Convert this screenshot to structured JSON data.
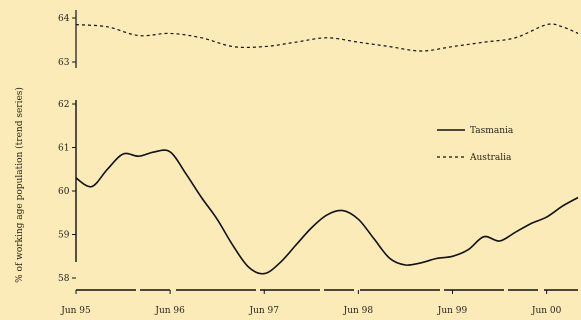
{
  "chart_data": {
    "type": "line",
    "ylabel": "% of working age population (trend series)",
    "yticks_top": [
      "64",
      "63"
    ],
    "yticks_bottom": [
      "62",
      "61",
      "60",
      "59",
      "58"
    ],
    "ylim_top": [
      63,
      64
    ],
    "ylim_bottom": [
      58,
      62
    ],
    "x_tick_labels": [
      "Jun 95",
      "Jun 96",
      "Jun 97",
      "Jun 98",
      "Jun 99",
      "Jun 00"
    ],
    "x_tick_months": [
      0,
      12,
      24,
      36,
      48,
      60
    ],
    "series": [
      {
        "name": "Tasmania",
        "panel": "bottom",
        "dash": "solid",
        "x": [
          0,
          2,
          4,
          6,
          8,
          10,
          12,
          14,
          16,
          18,
          20,
          22,
          24,
          26,
          28,
          30,
          32,
          34,
          36,
          38,
          40,
          42,
          44,
          46,
          48,
          50,
          52,
          54,
          56,
          58,
          60,
          62,
          64
        ],
        "values": [
          60.3,
          60.1,
          60.5,
          60.85,
          60.8,
          60.9,
          60.9,
          60.4,
          59.85,
          59.35,
          58.75,
          58.25,
          58.1,
          58.35,
          58.75,
          59.15,
          59.45,
          59.55,
          59.35,
          58.9,
          58.45,
          58.3,
          58.35,
          58.45,
          58.5,
          58.65,
          58.95,
          58.85,
          59.05,
          59.25,
          59.4,
          59.65,
          59.85
        ]
      },
      {
        "name": "Australia",
        "panel": "top",
        "dash": "dashed",
        "x": [
          0,
          4,
          8,
          12,
          16,
          20,
          24,
          28,
          32,
          36,
          40,
          44,
          48,
          52,
          56,
          60,
          62,
          64
        ],
        "values": [
          63.85,
          63.8,
          63.6,
          63.65,
          63.55,
          63.35,
          63.35,
          63.45,
          63.55,
          63.45,
          63.35,
          63.25,
          63.35,
          63.45,
          63.55,
          63.85,
          63.8,
          63.65
        ]
      }
    ],
    "legend_position": "right"
  }
}
